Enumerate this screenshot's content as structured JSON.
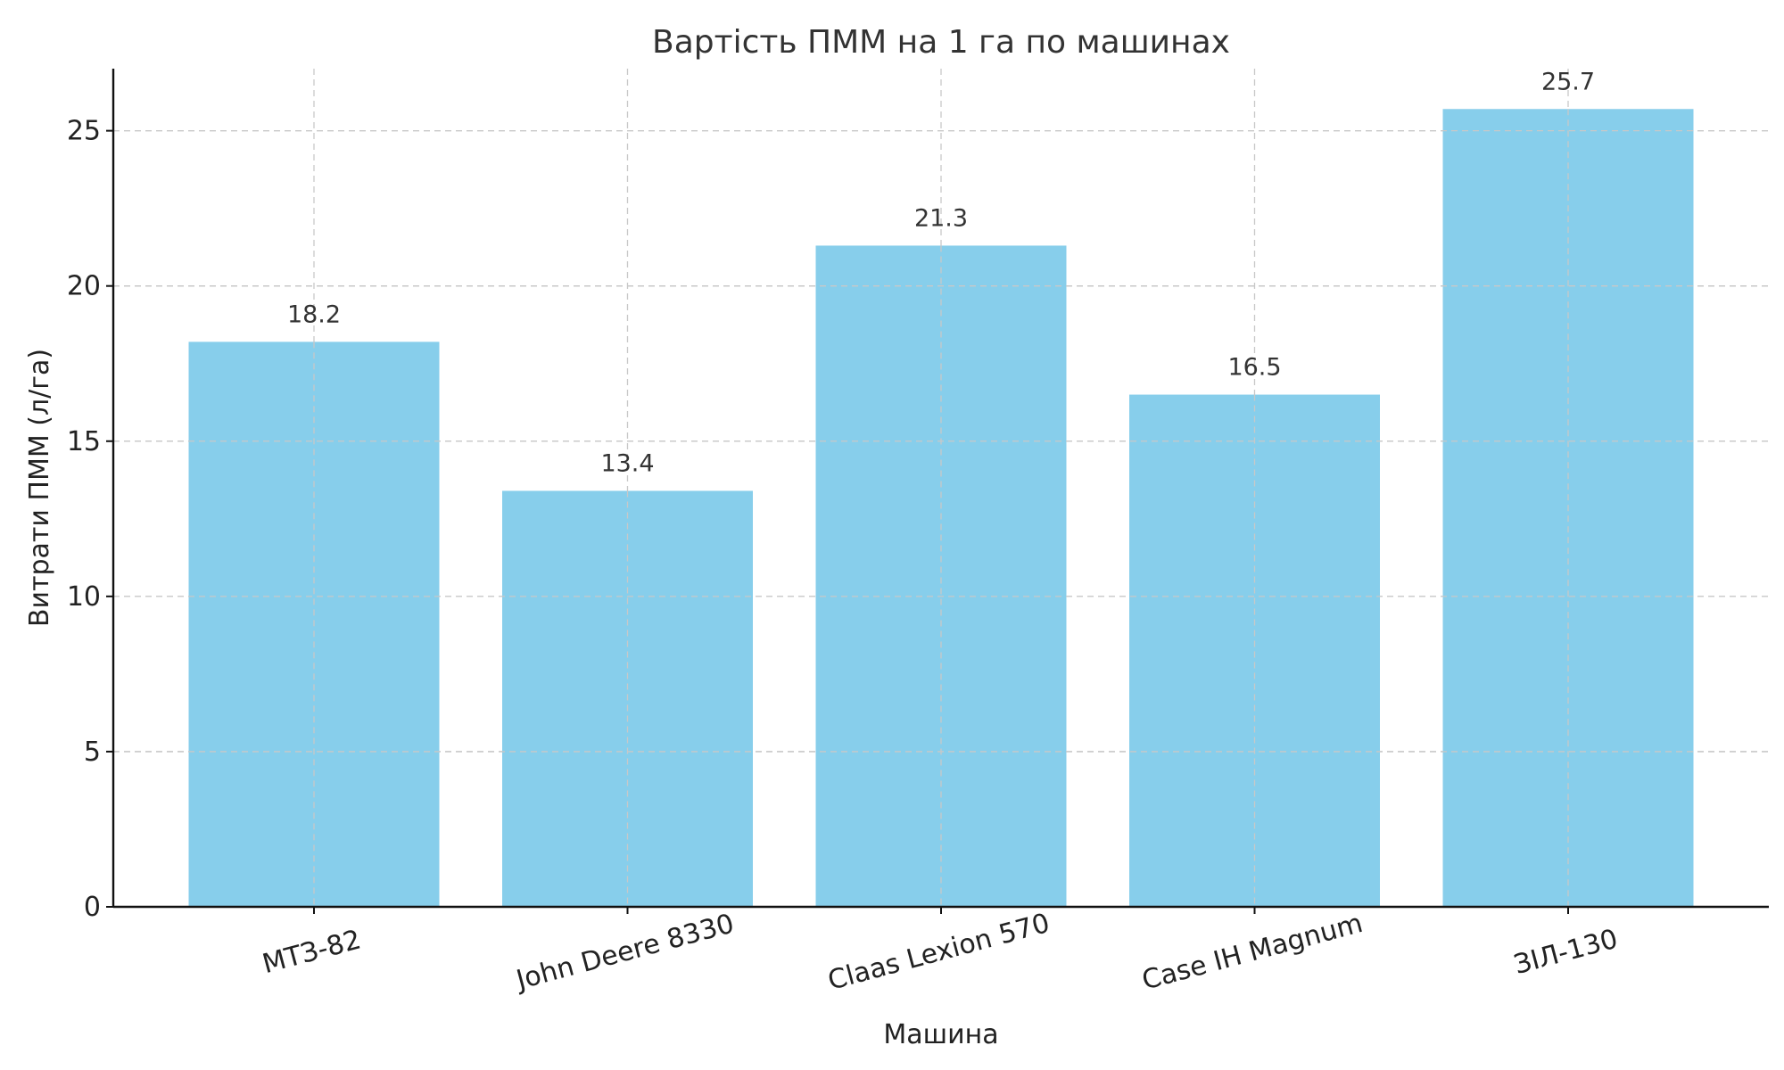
{
  "chart_data": {
    "type": "bar",
    "title": "Вартість ПММ на 1 га по машинах",
    "xlabel": "Машина",
    "ylabel": "Витрати ПММ (л/га)",
    "categories": [
      "МТЗ-82",
      "John Deere 8330",
      "Claas Lexion 570",
      "Case IH Magnum",
      "ЗІЛ-130"
    ],
    "values": [
      18.2,
      13.4,
      21.3,
      16.5,
      25.7
    ],
    "value_labels": [
      "18.2",
      "13.4",
      "21.3",
      "16.5",
      "25.7"
    ],
    "ylim": [
      0,
      27
    ],
    "yticks": [
      0,
      5,
      10,
      15,
      20,
      25
    ],
    "ytick_labels": [
      "0",
      "5",
      "10",
      "15",
      "20",
      "25"
    ],
    "grid": true,
    "bar_color": "#87CEEB"
  }
}
